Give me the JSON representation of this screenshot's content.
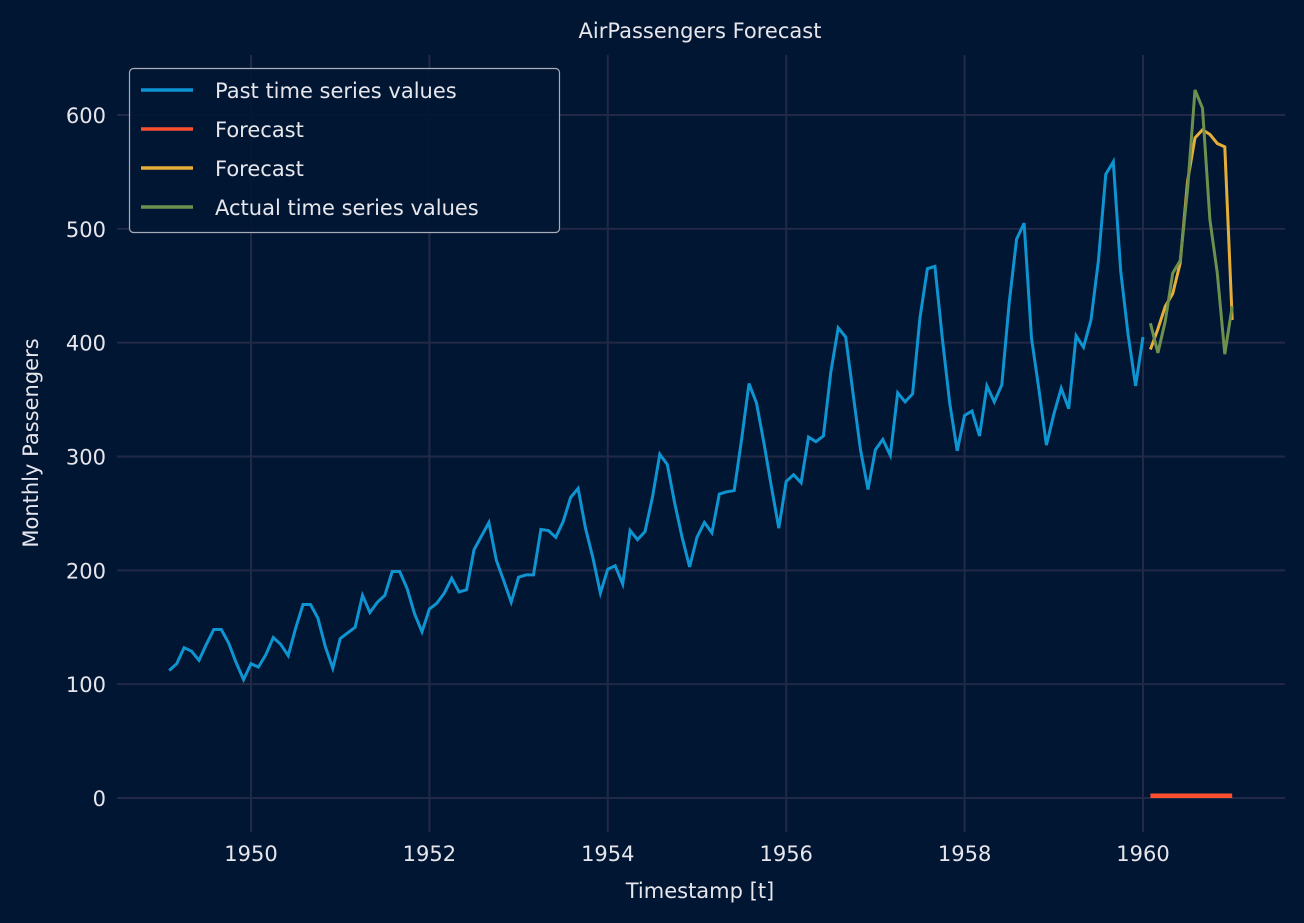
{
  "chart_data": {
    "type": "line",
    "title": "AirPassengers Forecast",
    "xlabel": "Timestamp [t]",
    "ylabel": "Monthly Passengers",
    "xlim": [
      1948.5,
      1961.6
    ],
    "ylim": [
      -28,
      650
    ],
    "xticks": [
      1950,
      1952,
      1954,
      1956,
      1958,
      1960
    ],
    "xtick_labels": [
      "1950",
      "1952",
      "1954",
      "1956",
      "1958",
      "1960"
    ],
    "yticks": [
      0,
      100,
      200,
      300,
      400,
      500,
      600
    ],
    "ytick_labels": [
      "0",
      "100",
      "200",
      "300",
      "400",
      "500",
      "600"
    ],
    "grid": true,
    "legend_position": "top-left",
    "background_color": "#011633",
    "series": [
      {
        "name": "Past time series values",
        "color": "#0f94d2",
        "x_start": "1949-01",
        "frequency": "monthly",
        "values": [
          112,
          118,
          132,
          129,
          121,
          135,
          148,
          148,
          136,
          119,
          104,
          118,
          115,
          126,
          141,
          135,
          125,
          149,
          170,
          170,
          158,
          133,
          114,
          140,
          145,
          150,
          178,
          163,
          172,
          178,
          199,
          199,
          184,
          162,
          146,
          166,
          171,
          180,
          193,
          181,
          183,
          218,
          230,
          242,
          209,
          191,
          172,
          194,
          196,
          196,
          236,
          235,
          229,
          243,
          264,
          272,
          237,
          211,
          180,
          201,
          204,
          188,
          235,
          227,
          234,
          264,
          302,
          293,
          259,
          229,
          203,
          229,
          242,
          233,
          267,
          269,
          270,
          315,
          364,
          347,
          312,
          274,
          237,
          278,
          284,
          277,
          317,
          313,
          318,
          374,
          413,
          405,
          355,
          306,
          271,
          306,
          315,
          301,
          356,
          348,
          355,
          422,
          465,
          467,
          404,
          347,
          305,
          336,
          340,
          318,
          362,
          348,
          363,
          435,
          491,
          505,
          404,
          359,
          310,
          337,
          360,
          342,
          406,
          396,
          420,
          472,
          548,
          559,
          463,
          407,
          362,
          405
        ]
      },
      {
        "name": "Forecast",
        "color": "#fc4f30",
        "x_start": "1960-01",
        "frequency": "monthly",
        "values": [
          2,
          2,
          2,
          2,
          2,
          2,
          2,
          2,
          2,
          2,
          2,
          2
        ]
      },
      {
        "name": "Forecast",
        "color": "#e5ae38",
        "x_start": "1960-01",
        "frequency": "monthly",
        "values": [
          394,
          412,
          432,
          443,
          470,
          542,
          580,
          587,
          583,
          575,
          572,
          420
        ]
      },
      {
        "name": "Actual time series values",
        "color": "#6d904f",
        "x_start": "1960-01",
        "frequency": "monthly",
        "values": [
          417,
          391,
          419,
          461,
          472,
          535,
          622,
          606,
          508,
          461,
          390,
          432
        ]
      }
    ]
  }
}
